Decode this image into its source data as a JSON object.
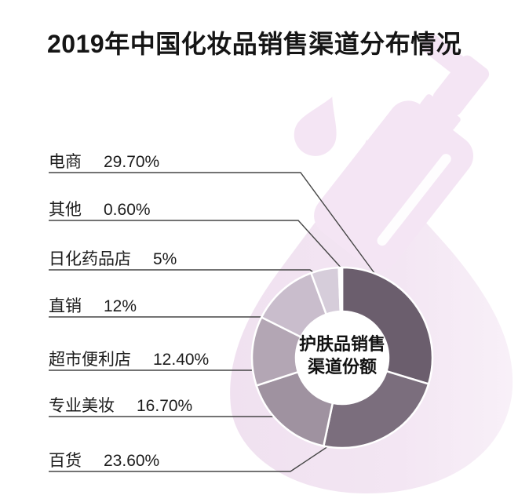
{
  "title": "2019年中国化妆品销售渠道分布情况",
  "chart_data": {
    "type": "pie",
    "donut": true,
    "title": "2019年中国化妆品销售渠道分布情况",
    "center_label": [
      "护肤品销售",
      "渠道份额"
    ],
    "legend_position": "left",
    "unit": "%",
    "items": [
      {
        "label": "电商",
        "value": 29.7,
        "value_text": "29.70%",
        "color": "#6b5e6d"
      },
      {
        "label": "其他",
        "value": 0.6,
        "value_text": "0.60%",
        "color": "#ffffff"
      },
      {
        "label": "日化药品店",
        "value": 5,
        "value_text": "5%",
        "color": "#d6cdda"
      },
      {
        "label": "直销",
        "value": 12,
        "value_text": "12%",
        "color": "#c9bdcc"
      },
      {
        "label": "超市便利店",
        "value": 12.4,
        "value_text": "12.40%",
        "color": "#b3a6b4"
      },
      {
        "label": "专业美妆",
        "value": 16.7,
        "value_text": "16.70%",
        "color": "#9f92a0"
      },
      {
        "label": "百货",
        "value": 23.6,
        "value_text": "23.60%",
        "color": "#7b6e7d"
      }
    ],
    "pie_order_clockwise_from_top": [
      0,
      6,
      5,
      4,
      3,
      2,
      1
    ],
    "start_position": "12-o-clock",
    "watermark_color": "#f4e5f4",
    "leader_line_color": "#454545"
  }
}
